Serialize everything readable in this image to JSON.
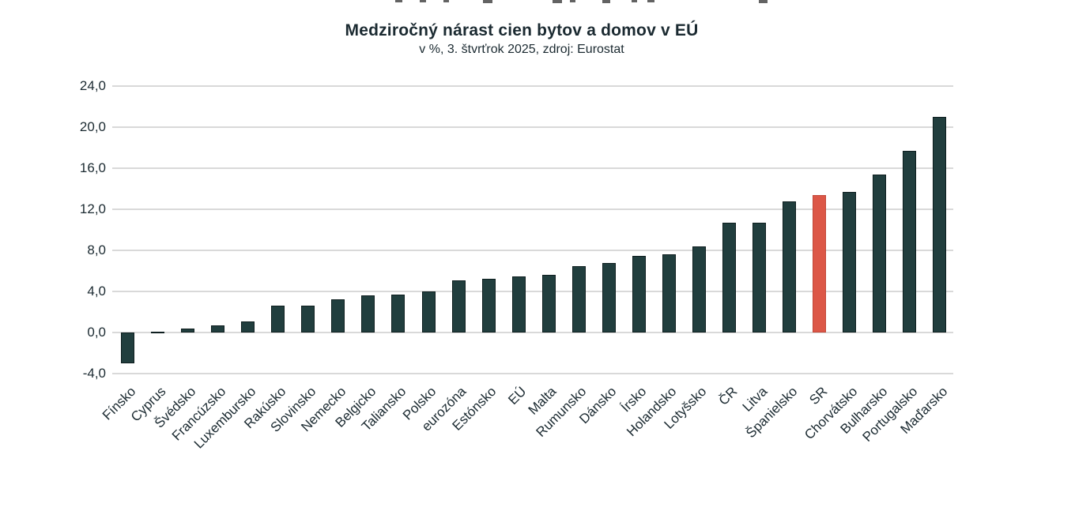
{
  "chart": {
    "title": "Medziročný nárast cien bytov a domov v EÚ",
    "subtitle": "v %, 3. štvrťrok 2025, zdroj: Eurostat"
  },
  "chart_data": {
    "type": "bar",
    "title": "Medziročný nárast cien bytov a domov v EÚ",
    "subtitle": "v %, 3. štvrťrok 2025, zdroj: Eurostat",
    "unit": "%",
    "categories": [
      "Fínsko",
      "Cyprus",
      "Švédsko",
      "Francúzsko",
      "Luxembursko",
      "Rakúsko",
      "Slovinsko",
      "Nemecko",
      "Belgicko",
      "Taliansko",
      "Polsko",
      "eurozóna",
      "Estónsko",
      "EÚ",
      "Malta",
      "Rumunsko",
      "Dánsko",
      "Írsko",
      "Holandsko",
      "Lotyšsko",
      "ČR",
      "Litva",
      "Španielsko",
      "SR",
      "Chorvátsko",
      "Bulharsko",
      "Portugalsko",
      "Maďarsko"
    ],
    "values": [
      -3.0,
      0.0,
      0.4,
      0.7,
      1.1,
      2.6,
      2.6,
      3.2,
      3.6,
      3.7,
      4.0,
      5.1,
      5.2,
      5.5,
      5.6,
      6.5,
      6.8,
      7.5,
      7.6,
      8.4,
      10.7,
      10.7,
      12.8,
      13.4,
      13.7,
      15.4,
      17.7,
      21.0
    ],
    "highlight_category": "SR",
    "colors": {
      "bar": "#213e3e",
      "bar_border": "#0e1e1f",
      "highlight": "#dc5747",
      "highlight_border": "#c24839",
      "gridline": "#d9d9d9",
      "text": "#1b2a31"
    },
    "ylim": [
      -4,
      24
    ],
    "ytick_values": [
      24,
      20,
      16,
      12,
      8,
      4,
      0,
      -4
    ],
    "ytick_labels": [
      "24,0",
      "20,0",
      "16,0",
      "12,0",
      "8,0",
      "4,0",
      "0,0",
      "-4,0"
    ],
    "grid": true,
    "legend": false,
    "xlabel": "",
    "ylabel": ""
  }
}
